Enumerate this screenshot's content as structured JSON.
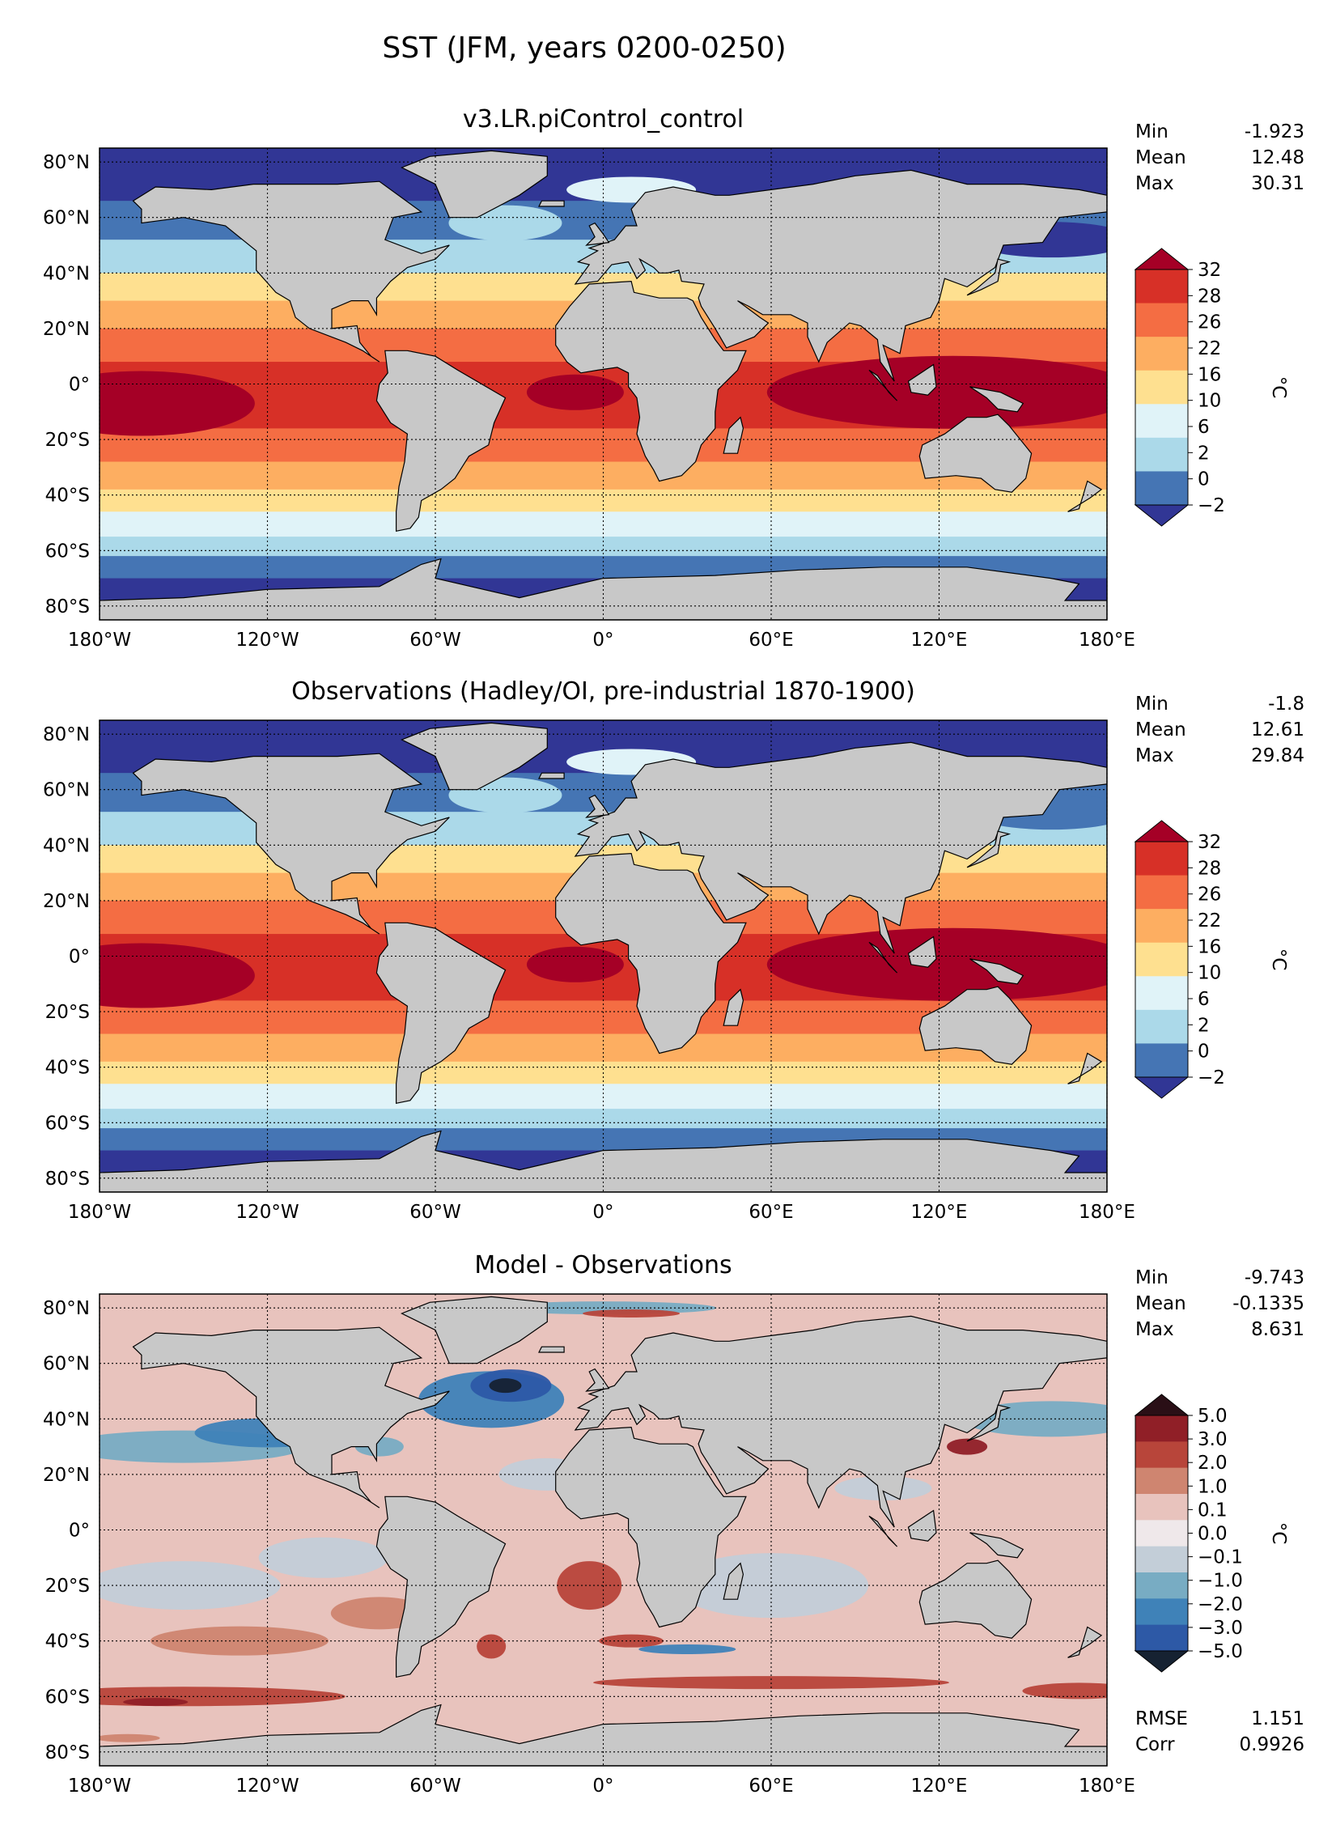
{
  "figure_title": "SST (JFM, years 0200-0250)",
  "lat_ticks": [
    "80°N",
    "60°N",
    "40°N",
    "20°N",
    "0°",
    "20°S",
    "40°S",
    "60°S",
    "80°S"
  ],
  "lon_ticks": [
    "180°W",
    "120°W",
    "60°W",
    "0°",
    "60°E",
    "120°E",
    "180°E"
  ],
  "colors": {
    "land": "#c8c8c8",
    "sst_levels": [
      "#313695",
      "#4575b4",
      "#abd9e9",
      "#e0f3f8",
      "#fee090",
      "#fdae61",
      "#f46d43",
      "#d73027",
      "#a50026"
    ],
    "diff_levels": [
      "#162232",
      "#2d59a6",
      "#3f82b8",
      "#78acc3",
      "#c3ced8",
      "#efe8ea",
      "#e8c3bd",
      "#cf8570",
      "#b8453a",
      "#901f27",
      "#2a0f16"
    ]
  },
  "panels": [
    {
      "title": "v3.LR.piControl_control",
      "kind": "sst",
      "stats": [
        [
          "Min",
          "-1.923"
        ],
        [
          "Mean",
          "12.48"
        ],
        [
          "Max",
          "30.31"
        ]
      ],
      "colorbar": {
        "label": "°C",
        "ticks": [
          "32",
          "28",
          "26",
          "22",
          "16",
          "10",
          "6",
          "2",
          "0",
          "−2"
        ]
      }
    },
    {
      "title": "Observations (Hadley/OI, pre-industrial 1870-1900)",
      "kind": "sst",
      "stats": [
        [
          "Min",
          "-1.8"
        ],
        [
          "Mean",
          "12.61"
        ],
        [
          "Max",
          "29.84"
        ]
      ],
      "colorbar": {
        "label": "°C",
        "ticks": [
          "32",
          "28",
          "26",
          "22",
          "16",
          "10",
          "6",
          "2",
          "0",
          "−2"
        ]
      }
    },
    {
      "title": "Model - Observations",
      "kind": "diff",
      "stats": [
        [
          "Min",
          "-9.743"
        ],
        [
          "Mean",
          "-0.1335"
        ],
        [
          "Max",
          "8.631"
        ]
      ],
      "extra_stats": [
        [
          "RMSE",
          "1.151"
        ],
        [
          "Corr",
          "0.9926"
        ]
      ],
      "colorbar": {
        "label": "°C",
        "ticks": [
          "5.0",
          "3.0",
          "2.0",
          "1.0",
          "0.1",
          "0.0",
          "−0.1",
          "−1.0",
          "−2.0",
          "−3.0",
          "−5.0"
        ]
      }
    }
  ]
}
